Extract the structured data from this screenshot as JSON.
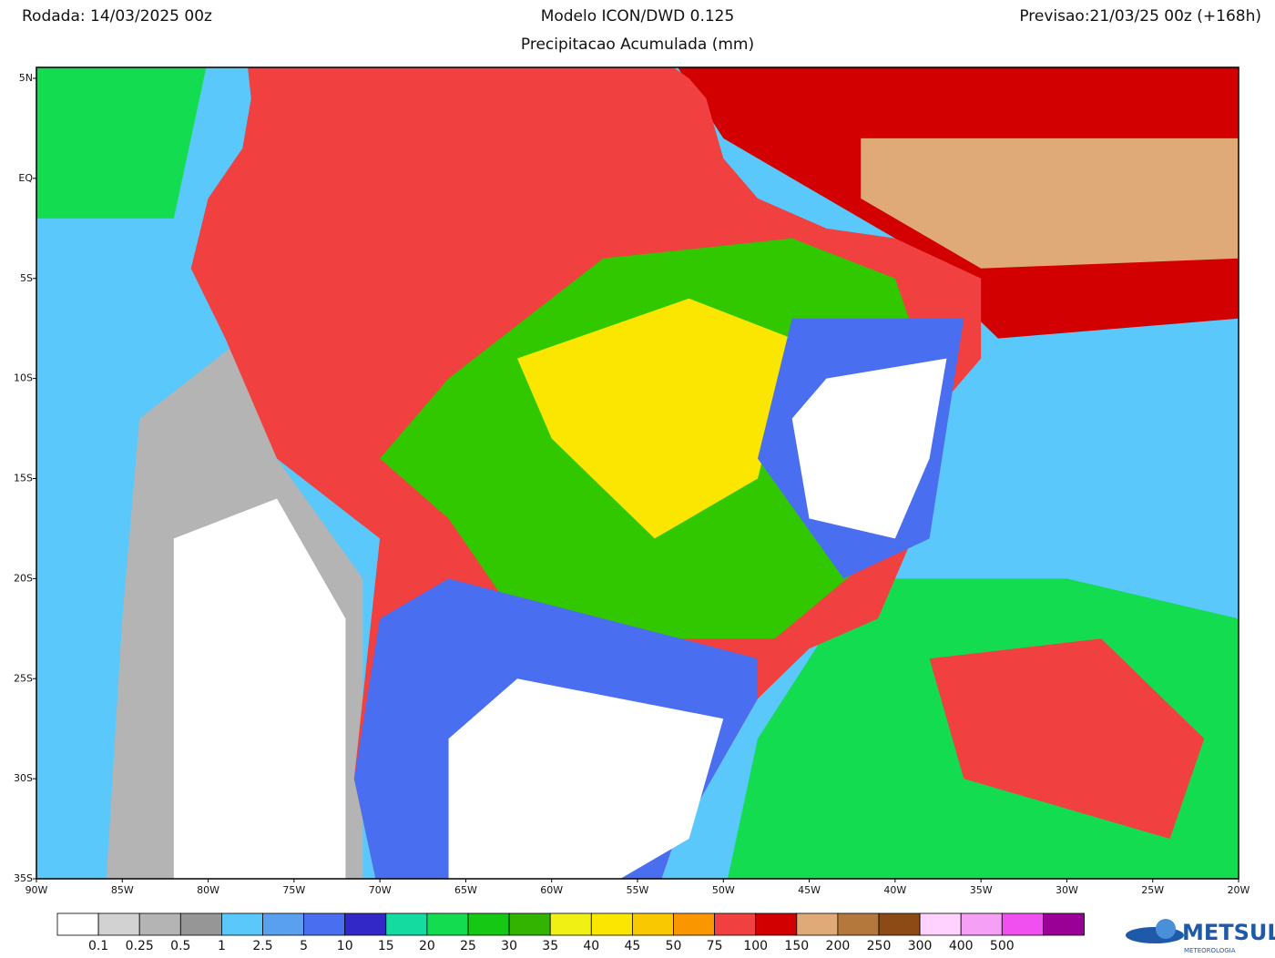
{
  "header": {
    "run": "Rodada: 14/03/2025 00z",
    "model": "Modelo ICON/DWD 0.125",
    "product": "Precipitacao Acumulada (mm)",
    "forecast": "Previsao:21/03/25 00z (+168h)"
  },
  "map": {
    "lat_labels": [
      "5N",
      "EQ",
      "5S",
      "10S",
      "15S",
      "20S",
      "25S",
      "30S",
      "35S"
    ],
    "lon_labels": [
      "90W",
      "85W",
      "80W",
      "75W",
      "70W",
      "65W",
      "60W",
      "55W",
      "50W",
      "45W",
      "40W",
      "35W",
      "30W",
      "25W",
      "20W"
    ]
  },
  "colorbar": {
    "labels": [
      "0.1",
      "0.25",
      "0.5",
      "1",
      "2.5",
      "5",
      "10",
      "15",
      "20",
      "25",
      "30",
      "35",
      "40",
      "45",
      "50",
      "75",
      "100",
      "150",
      "200",
      "250",
      "300",
      "400",
      "500"
    ],
    "colors": [
      "#ffffff",
      "#d2d2d2",
      "#b4b4b4",
      "#969696",
      "#5ac8fa",
      "#5aa0f0",
      "#4a6ef0",
      "#3228c8",
      "#14dca0",
      "#14dc50",
      "#14c814",
      "#32b400",
      "#f0f014",
      "#fae600",
      "#fac800",
      "#fa9600",
      "#f04040",
      "#d20000",
      "#e0aa78",
      "#b4783c",
      "#8c4a14",
      "#ffd2ff",
      "#f5a0f5",
      "#f050f0",
      "#9b0096"
    ]
  },
  "logo": {
    "name": "METSUL",
    "tagline": "METEOROLOGIA"
  }
}
